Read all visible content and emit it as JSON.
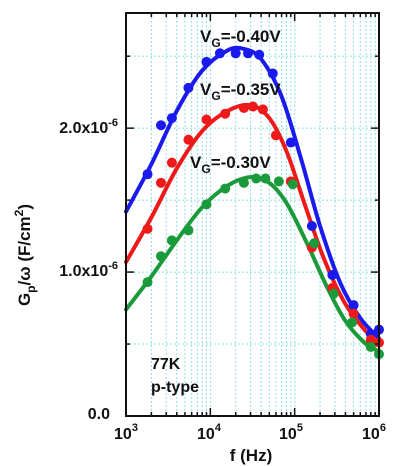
{
  "chart_data": {
    "type": "scatter",
    "xlabel": "f (Hz)",
    "ylabel": "G",
    "ylabel_sub": "p",
    "ylabel_rest": "/ω (F/cm",
    "ylabel_sup": "2",
    "ylabel_end": ")",
    "x_scale": "log",
    "xlim": [
      1000,
      1000000
    ],
    "ylim": [
      0,
      2.8e-06
    ],
    "grid": true,
    "x_ticks": [
      {
        "value": 1000,
        "base": "10",
        "exp": "3"
      },
      {
        "value": 10000,
        "base": "10",
        "exp": "4"
      },
      {
        "value": 100000,
        "base": "10",
        "exp": "5"
      },
      {
        "value": 1000000,
        "base": "10",
        "exp": "6"
      }
    ],
    "y_ticks": [
      {
        "value": 0,
        "label": "0.0",
        "exp": ""
      },
      {
        "value": 1e-06,
        "label": "1.0x10",
        "exp": "-6"
      },
      {
        "value": 2e-06,
        "label": "2.0x10",
        "exp": "-6"
      }
    ],
    "annotations": [
      "77K",
      "p-type"
    ],
    "series": [
      {
        "name_pre": "V",
        "name_sub": "G",
        "name_post": "=-0.40V",
        "color": "#1a1aee",
        "points": [
          [
            1800,
            1.68e-06
          ],
          [
            2600,
            2.02e-06
          ],
          [
            3500,
            2.07e-06
          ],
          [
            5500,
            2.28e-06
          ],
          [
            9000,
            2.46e-06
          ],
          [
            13000,
            2.52e-06
          ],
          [
            20000,
            2.52e-06
          ],
          [
            28000,
            2.52e-06
          ],
          [
            38000,
            2.51e-06
          ],
          [
            55000,
            2.38e-06
          ],
          [
            90000,
            1.9e-06
          ],
          [
            160000,
            1.32e-06
          ],
          [
            280000,
            9.8e-07
          ],
          [
            500000,
            7.7e-07
          ],
          [
            800000,
            5.7e-07
          ],
          [
            1000000,
            6e-07
          ]
        ],
        "fit": [
          [
            1000,
            1.42e-06
          ],
          [
            2000,
            1.75e-06
          ],
          [
            4000,
            2.12e-06
          ],
          [
            8000,
            2.4e-06
          ],
          [
            16000,
            2.54e-06
          ],
          [
            25000,
            2.55e-06
          ],
          [
            40000,
            2.48e-06
          ],
          [
            70000,
            2.22e-06
          ],
          [
            120000,
            1.78e-06
          ],
          [
            200000,
            1.32e-06
          ],
          [
            350000,
            9.2e-07
          ],
          [
            600000,
            6.8e-07
          ],
          [
            1000000,
            5.4e-07
          ]
        ]
      },
      {
        "name_pre": "V",
        "name_sub": "G",
        "name_post": "=-0.35V",
        "color": "#ee1a1a",
        "points": [
          [
            1800,
            1.3e-06
          ],
          [
            2600,
            1.62e-06
          ],
          [
            3500,
            1.76e-06
          ],
          [
            5500,
            1.92e-06
          ],
          [
            9000,
            2.06e-06
          ],
          [
            15000,
            2.1e-06
          ],
          [
            25000,
            2.14e-06
          ],
          [
            32000,
            2.15e-06
          ],
          [
            42000,
            2.13e-06
          ],
          [
            60000,
            1.95e-06
          ],
          [
            90000,
            1.63e-06
          ],
          [
            160000,
            1.17e-06
          ],
          [
            280000,
            8.9e-07
          ],
          [
            500000,
            7.1e-07
          ],
          [
            800000,
            5.3e-07
          ],
          [
            1000000,
            5.1e-07
          ]
        ],
        "fit": [
          [
            1000,
            1.07e-06
          ],
          [
            2000,
            1.38e-06
          ],
          [
            4000,
            1.72e-06
          ],
          [
            8000,
            1.98e-06
          ],
          [
            16000,
            2.12e-06
          ],
          [
            30000,
            2.16e-06
          ],
          [
            50000,
            2.07e-06
          ],
          [
            80000,
            1.84e-06
          ],
          [
            130000,
            1.48e-06
          ],
          [
            220000,
            1.1e-06
          ],
          [
            380000,
            8e-07
          ],
          [
            650000,
            6.1e-07
          ],
          [
            1000000,
            5e-07
          ]
        ]
      },
      {
        "name_pre": "V",
        "name_sub": "G",
        "name_post": "=-0.30V",
        "color": "#1a9a3a",
        "points": [
          [
            1800,
            9.3e-07
          ],
          [
            2600,
            1.11e-06
          ],
          [
            3500,
            1.22e-06
          ],
          [
            5500,
            1.29e-06
          ],
          [
            9000,
            1.47e-06
          ],
          [
            15000,
            1.58e-06
          ],
          [
            25000,
            1.62e-06
          ],
          [
            35000,
            1.65e-06
          ],
          [
            45000,
            1.65e-06
          ],
          [
            65000,
            1.63e-06
          ],
          [
            95000,
            1.61e-06
          ],
          [
            170000,
            1.2e-06
          ],
          [
            290000,
            8.5e-07
          ],
          [
            480000,
            6.5e-07
          ],
          [
            800000,
            4.8e-07
          ],
          [
            1000000,
            4.3e-07
          ]
        ],
        "fit": [
          [
            1000,
            7.4e-07
          ],
          [
            2000,
            9.7e-07
          ],
          [
            4000,
            1.22e-06
          ],
          [
            8000,
            1.45e-06
          ],
          [
            16000,
            1.6e-06
          ],
          [
            30000,
            1.66e-06
          ],
          [
            50000,
            1.62e-06
          ],
          [
            80000,
            1.48e-06
          ],
          [
            140000,
            1.2e-06
          ],
          [
            240000,
            9e-07
          ],
          [
            400000,
            6.6e-07
          ],
          [
            700000,
            5e-07
          ],
          [
            1000000,
            4.5e-07
          ]
        ]
      }
    ]
  }
}
